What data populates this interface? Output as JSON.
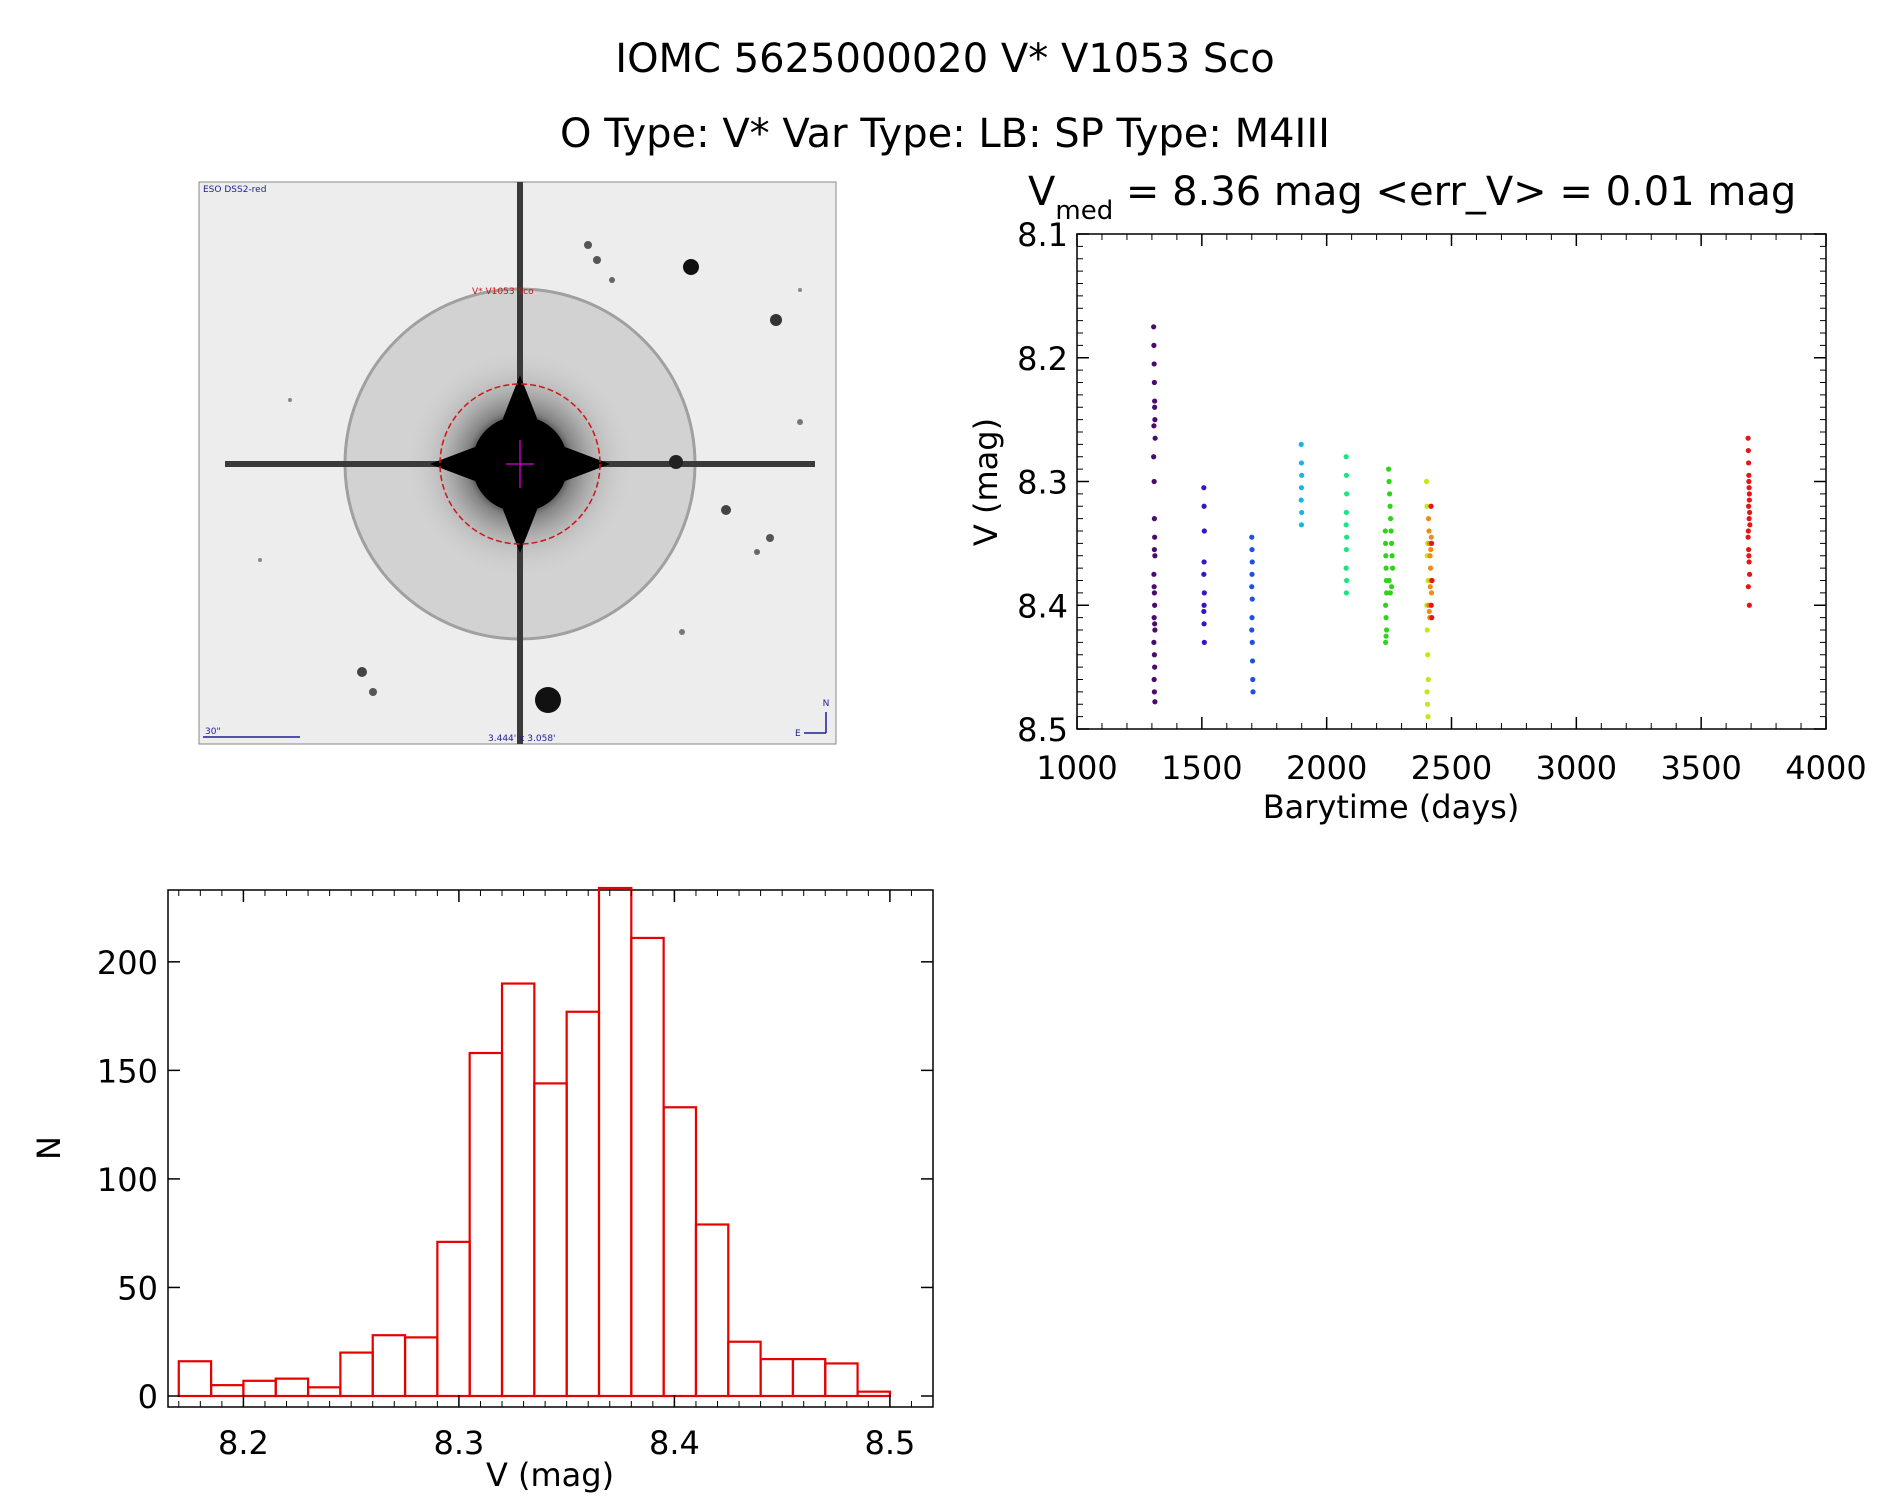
{
  "header": {
    "title_line1": "IOMC 5625000020    V* V1053 Sco",
    "title_line2": "O Type: V*   Var Type: LB:   SP Type: M4III"
  },
  "finder": {
    "survey_label": "ESO DSS2-red",
    "object_label": "V* V1053 Sco",
    "scale_label": "30\"",
    "fov_label": "3.444' x 3.058'",
    "north_label": "N",
    "east_label": "E"
  },
  "chart_data": [
    {
      "type": "scatter",
      "title_prefix": "V",
      "title_sub": "med",
      "title_rest": " = 8.36 mag <err_V> = 0.01 mag",
      "xlabel": "Barytime (days)",
      "ylabel": "V (mag)",
      "xlim": [
        1000,
        4000
      ],
      "ylim": [
        8.5,
        8.1
      ],
      "xticks": [
        1000,
        1500,
        2000,
        2500,
        3000,
        3500,
        4000
      ],
      "xtick_labels": [
        "1000",
        "1500",
        "2000",
        "2500",
        "3000",
        "3500",
        "4000"
      ],
      "yticks": [
        8.1,
        8.2,
        8.3,
        8.4,
        8.5
      ],
      "ytick_labels": [
        "8.1",
        "8.2",
        "8.3",
        "8.4",
        "8.5"
      ],
      "series": [
        {
          "color": "#4b0a6e",
          "x": [
            1307,
            1308,
            1309,
            1310,
            1311,
            1312,
            1313,
            1307,
            1309,
            1310,
            1311,
            1312,
            1308,
            1310,
            1311,
            1309,
            1312,
            1308,
            1310,
            1311,
            1309,
            1310,
            1312,
            1311,
            1308,
            1310,
            1309,
            1311
          ],
          "y": [
            8.175,
            8.19,
            8.205,
            8.22,
            8.235,
            8.25,
            8.265,
            8.28,
            8.3,
            8.33,
            8.345,
            8.36,
            8.375,
            8.39,
            8.4,
            8.41,
            8.42,
            8.43,
            8.44,
            8.45,
            8.46,
            8.47,
            8.478,
            8.24,
            8.255,
            8.355,
            8.385,
            8.415
          ]
        },
        {
          "color": "#3c12c8",
          "x": [
            1508,
            1509,
            1510,
            1509,
            1508,
            1510,
            1509,
            1508,
            1509,
            1510
          ],
          "y": [
            8.305,
            8.32,
            8.34,
            8.365,
            8.375,
            8.39,
            8.4,
            8.405,
            8.415,
            8.43
          ]
        },
        {
          "color": "#1e50e6",
          "x": [
            1700,
            1701,
            1702,
            1701,
            1700,
            1702,
            1701,
            1700,
            1702,
            1703,
            1704,
            1705
          ],
          "y": [
            8.345,
            8.355,
            8.365,
            8.375,
            8.385,
            8.395,
            8.41,
            8.42,
            8.43,
            8.445,
            8.46,
            8.47
          ]
        },
        {
          "color": "#19b4e6",
          "x": [
            1898,
            1899,
            1900,
            1899,
            1898,
            1900,
            1899
          ],
          "y": [
            8.27,
            8.285,
            8.295,
            8.305,
            8.315,
            8.325,
            8.335
          ]
        },
        {
          "color": "#19e682",
          "x": [
            2078,
            2079,
            2080,
            2079,
            2078,
            2080,
            2079,
            2078,
            2080,
            2079
          ],
          "y": [
            8.28,
            8.295,
            8.31,
            8.325,
            8.335,
            8.345,
            8.355,
            8.37,
            8.38,
            8.39
          ]
        },
        {
          "color": "#2fd419",
          "x": [
            2235,
            2236,
            2237,
            2238,
            2239,
            2240,
            2248,
            2250,
            2252,
            2254,
            2256,
            2258,
            2260,
            2262,
            2264,
            2236,
            2238,
            2240,
            2250,
            2255,
            2260,
            2238,
            2236
          ],
          "y": [
            8.34,
            8.35,
            8.36,
            8.37,
            8.38,
            8.39,
            8.29,
            8.3,
            8.31,
            8.32,
            8.33,
            8.34,
            8.35,
            8.36,
            8.37,
            8.4,
            8.41,
            8.42,
            8.38,
            8.39,
            8.385,
            8.425,
            8.43
          ]
        },
        {
          "color": "#c8e614",
          "x": [
            2400,
            2402,
            2404,
            2406,
            2401,
            2403,
            2405,
            2407,
            2402,
            2404,
            2406,
            2403
          ],
          "y": [
            8.3,
            8.32,
            8.35,
            8.38,
            8.4,
            8.42,
            8.44,
            8.46,
            8.47,
            8.48,
            8.49,
            8.36
          ]
        },
        {
          "color": "#f08c14",
          "x": [
            2408,
            2410,
            2412,
            2414,
            2416,
            2418,
            2420,
            2409,
            2411,
            2413,
            2415,
            2417,
            2419
          ],
          "y": [
            8.33,
            8.34,
            8.35,
            8.36,
            8.37,
            8.38,
            8.39,
            8.4,
            8.405,
            8.41,
            8.385,
            8.355,
            8.345
          ]
        },
        {
          "color": "#e61414",
          "x": [
            2418,
            2420,
            2422,
            2419,
            2421,
            3688,
            3689,
            3690,
            3691,
            3692,
            3693,
            3694,
            3695,
            3688,
            3690,
            3692,
            3694,
            3689,
            3691,
            3693,
            3690,
            3692,
            3689,
            3691,
            3693
          ],
          "y": [
            8.32,
            8.35,
            8.38,
            8.4,
            8.41,
            8.265,
            8.275,
            8.285,
            8.295,
            8.305,
            8.315,
            8.325,
            8.335,
            8.345,
            8.355,
            8.365,
            8.375,
            8.385,
            8.3,
            8.31,
            8.32,
            8.33,
            8.34,
            8.36,
            8.4
          ]
        }
      ]
    },
    {
      "type": "bar",
      "xlabel": "V (mag)",
      "ylabel": "N",
      "xlim": [
        8.165,
        8.52
      ],
      "ylim": [
        0,
        240
      ],
      "bin_edges": [
        8.17,
        8.185,
        8.2,
        8.215,
        8.23,
        8.245,
        8.26,
        8.275,
        8.29,
        8.305,
        8.32,
        8.335,
        8.35,
        8.365,
        8.38,
        8.395,
        8.41,
        8.425,
        8.44,
        8.455,
        8.47,
        8.485,
        8.5
      ],
      "values": [
        16,
        5,
        7,
        8,
        4,
        20,
        28,
        27,
        71,
        158,
        190,
        144,
        177,
        234,
        211,
        133,
        79,
        25,
        17,
        17,
        15,
        2
      ],
      "xticks": [
        8.2,
        8.3,
        8.4,
        8.5
      ],
      "xtick_labels": [
        "8.2",
        "8.3",
        "8.4",
        "8.5"
      ],
      "yticks": [
        0,
        50,
        100,
        150,
        200
      ],
      "ytick_labels": [
        "0",
        "50",
        "100",
        "150",
        "200"
      ],
      "bar_color": "#e60000"
    }
  ]
}
